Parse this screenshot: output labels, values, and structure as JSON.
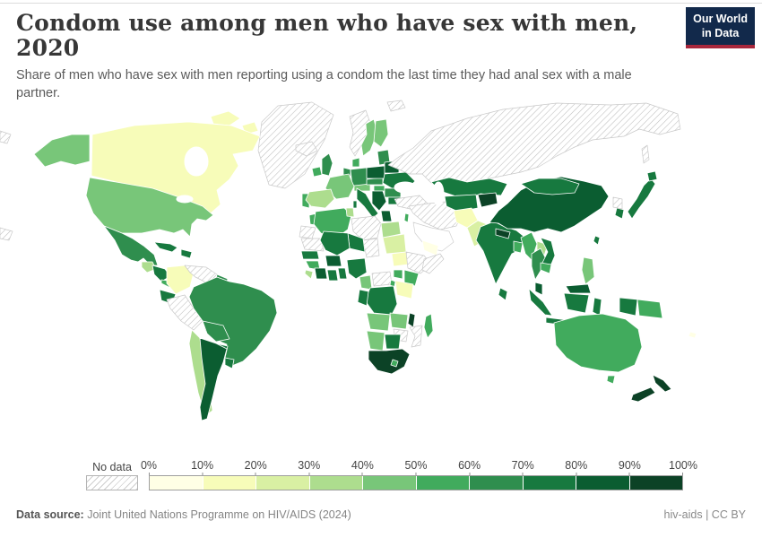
{
  "header": {
    "title": "Condom use among men who have sex with men, 2020",
    "subtitle": "Share of men who have sex with men reporting using a condom the last time they had anal sex with a male partner."
  },
  "logo": {
    "line1": "Our World",
    "line2": "in Data",
    "bg_color": "#12294b",
    "accent_color": "#a8273c"
  },
  "footer": {
    "source_label": "Data source:",
    "source_text": "Joint United Nations Programme on HIV/AIDS (2024)",
    "attribution": "hiv-aids | CC BY"
  },
  "chart_data": {
    "type": "choropleth_map",
    "title": "Condom use among men who have sex with men, 2020",
    "year": 2020,
    "unit": "%",
    "projection": "world",
    "legend": {
      "no_data_label": "No data",
      "tick_labels": [
        "0%",
        "10%",
        "20%",
        "30%",
        "40%",
        "50%",
        "60%",
        "70%",
        "80%",
        "90%",
        "100%"
      ],
      "bin_labels": [
        "0-10%",
        "10-20%",
        "20-30%",
        "30-40%",
        "40-50%",
        "50-60%",
        "60-70%",
        "70-80%",
        "80-90%",
        "90-100%"
      ],
      "bin_colors": [
        "#ffffe5",
        "#f7fcb9",
        "#d9f0a3",
        "#addd8e",
        "#78c679",
        "#41ab5d",
        "#2f8e4e",
        "#17793f",
        "#0b5d31",
        "#0c4226"
      ],
      "no_data_fill": "hatched",
      "position": "bottom"
    },
    "regions": [
      {
        "id": "greenland",
        "name": "Greenland",
        "value": "No data",
        "bin": "nodata"
      },
      {
        "id": "iceland",
        "name": "Iceland",
        "value": "No data",
        "bin": "nodata"
      },
      {
        "id": "canada",
        "name": "Canada",
        "value": "10-20%",
        "bin": 1
      },
      {
        "id": "usa",
        "name": "United States",
        "value": "40-50%",
        "bin": 4
      },
      {
        "id": "mexico",
        "name": "Mexico",
        "value": "60-70%",
        "bin": 6
      },
      {
        "id": "guatemala",
        "name": "Guatemala",
        "value": "30-40%",
        "bin": 3
      },
      {
        "id": "honduras-nicaragua",
        "name": "Honduras / Nicaragua",
        "value": "70-80%",
        "bin": 7
      },
      {
        "id": "costarica-panama",
        "name": "Costa Rica / Panama",
        "value": "50-60%",
        "bin": 5
      },
      {
        "id": "cuba",
        "name": "Cuba",
        "value": "70-80%",
        "bin": 7
      },
      {
        "id": "hispaniola",
        "name": "Dominican Republic / Haiti",
        "value": "70-80%",
        "bin": 7
      },
      {
        "id": "colombia",
        "name": "Colombia",
        "value": "10-20%",
        "bin": 1
      },
      {
        "id": "venezuela",
        "name": "Venezuela",
        "value": "No data",
        "bin": "nodata"
      },
      {
        "id": "guyanas",
        "name": "Guyana / Suriname",
        "value": "60-70%",
        "bin": 6
      },
      {
        "id": "ecuador",
        "name": "Ecuador",
        "value": "70-80%",
        "bin": 7
      },
      {
        "id": "peru",
        "name": "Peru",
        "value": "No data",
        "bin": "nodata"
      },
      {
        "id": "brazil",
        "name": "Brazil",
        "value": "60-70%",
        "bin": 6
      },
      {
        "id": "bolivia",
        "name": "Bolivia",
        "value": "60-70%",
        "bin": 6
      },
      {
        "id": "paraguay",
        "name": "Paraguay",
        "value": "70-80%",
        "bin": 7
      },
      {
        "id": "chile",
        "name": "Chile",
        "value": "30-40%",
        "bin": 3
      },
      {
        "id": "argentina",
        "name": "Argentina",
        "value": "80-90%",
        "bin": 8
      },
      {
        "id": "uruguay",
        "name": "Uruguay",
        "value": "70-80%",
        "bin": 7
      },
      {
        "id": "ireland",
        "name": "Ireland",
        "value": "50-60%",
        "bin": 5
      },
      {
        "id": "uk",
        "name": "United Kingdom",
        "value": "60-70%",
        "bin": 6
      },
      {
        "id": "portugal",
        "name": "Portugal",
        "value": "50-60%",
        "bin": 5
      },
      {
        "id": "spain",
        "name": "Spain",
        "value": "30-40%",
        "bin": 3
      },
      {
        "id": "france",
        "name": "France",
        "value": "40-50%",
        "bin": 4
      },
      {
        "id": "benelux",
        "name": "Belgium / Netherlands",
        "value": "60-70%",
        "bin": 6
      },
      {
        "id": "germany",
        "name": "Germany",
        "value": "60-70%",
        "bin": 6
      },
      {
        "id": "denmark",
        "name": "Denmark",
        "value": "50-60%",
        "bin": 5
      },
      {
        "id": "norway",
        "name": "Norway",
        "value": "No data",
        "bin": "nodata"
      },
      {
        "id": "sweden",
        "name": "Sweden",
        "value": "40-50%",
        "bin": 4
      },
      {
        "id": "finland",
        "name": "Finland",
        "value": "40-50%",
        "bin": 4
      },
      {
        "id": "baltics",
        "name": "Baltic states",
        "value": "60-70%",
        "bin": 6
      },
      {
        "id": "poland",
        "name": "Poland",
        "value": "80-90%",
        "bin": 8
      },
      {
        "id": "belarus",
        "name": "Belarus",
        "value": "80-90%",
        "bin": 8
      },
      {
        "id": "ukraine",
        "name": "Ukraine",
        "value": "70-80%",
        "bin": 7
      },
      {
        "id": "czech-slovakia",
        "name": "Czechia / Slovakia",
        "value": "60-70%",
        "bin": 6
      },
      {
        "id": "alpine",
        "name": "Switzerland / Austria",
        "value": "40-50%",
        "bin": 4
      },
      {
        "id": "hungary",
        "name": "Hungary",
        "value": "50-60%",
        "bin": 5
      },
      {
        "id": "romania",
        "name": "Romania",
        "value": "60-70%",
        "bin": 6
      },
      {
        "id": "balkans",
        "name": "Serbia / Western Balkans",
        "value": "80-90%",
        "bin": 8
      },
      {
        "id": "bulgaria",
        "name": "Bulgaria",
        "value": "70-80%",
        "bin": 7
      },
      {
        "id": "greece",
        "name": "Greece",
        "value": "80-90%",
        "bin": 8
      },
      {
        "id": "italy",
        "name": "Italy",
        "value": "70-80%",
        "bin": 7
      },
      {
        "id": "sardinia",
        "name": "Sardinia",
        "value": "70-80%",
        "bin": 7
      },
      {
        "id": "russia",
        "name": "Russia",
        "value": "No data",
        "bin": "nodata"
      },
      {
        "id": "turkey",
        "name": "Turkey",
        "value": "No data",
        "bin": "nodata"
      },
      {
        "id": "middle-east",
        "name": "Syria / Iraq / Iran",
        "value": "No data",
        "bin": "nodata"
      },
      {
        "id": "arabia",
        "name": "Saudi Arabia / Oman",
        "value": "No data",
        "bin": "blank"
      },
      {
        "id": "yemen",
        "name": "Yemen",
        "value": "0-10%",
        "bin": 0
      },
      {
        "id": "israel-lebanon",
        "name": "Israel / Lebanon",
        "value": "50-60%",
        "bin": 5
      },
      {
        "id": "kazakhstan",
        "name": "Kazakhstan",
        "value": "70-80%",
        "bin": 7
      },
      {
        "id": "uzbek-turkmen",
        "name": "Uzbekistan / Turkmenistan",
        "value": "70-80%",
        "bin": 7
      },
      {
        "id": "kyrgyz-tajik",
        "name": "Kyrgyzstan / Tajikistan",
        "value": "90-100%",
        "bin": 9
      },
      {
        "id": "afghanistan",
        "name": "Afghanistan",
        "value": "10-20%",
        "bin": 1
      },
      {
        "id": "pakistan",
        "name": "Pakistan",
        "value": "20-30%",
        "bin": 2
      },
      {
        "id": "india",
        "name": "India",
        "value": "70-80%",
        "bin": 7
      },
      {
        "id": "nepal",
        "name": "Nepal",
        "value": "90-100%",
        "bin": 9
      },
      {
        "id": "bangladesh",
        "name": "Bangladesh",
        "value": "50-60%",
        "bin": 5
      },
      {
        "id": "sri-lanka",
        "name": "Sri Lanka",
        "value": "70-80%",
        "bin": 7
      },
      {
        "id": "china",
        "name": "China",
        "value": "80-90%",
        "bin": 8
      },
      {
        "id": "mongolia",
        "name": "Mongolia",
        "value": "70-80%",
        "bin": 7
      },
      {
        "id": "myanmar",
        "name": "Myanmar",
        "value": "50-60%",
        "bin": 5
      },
      {
        "id": "laos",
        "name": "Laos",
        "value": "30-40%",
        "bin": 3
      },
      {
        "id": "thailand",
        "name": "Thailand",
        "value": "60-70%",
        "bin": 6
      },
      {
        "id": "vietnam",
        "name": "Vietnam",
        "value": "70-80%",
        "bin": 7
      },
      {
        "id": "cambodia",
        "name": "Cambodia",
        "value": "50-60%",
        "bin": 5
      },
      {
        "id": "malaysia",
        "name": "Malaysia",
        "value": "80-90%",
        "bin": 8
      },
      {
        "id": "indonesia",
        "name": "Indonesia",
        "value": "70-80%",
        "bin": 7
      },
      {
        "id": "png",
        "name": "Papua New Guinea",
        "value": "50-60%",
        "bin": 5
      },
      {
        "id": "philippines",
        "name": "Philippines",
        "value": "40-50%",
        "bin": 4
      },
      {
        "id": "taiwan",
        "name": "Taiwan",
        "value": "70-80%",
        "bin": 7
      },
      {
        "id": "japan",
        "name": "Japan",
        "value": "70-80%",
        "bin": 7
      },
      {
        "id": "south-korea",
        "name": "South Korea",
        "value": "70-80%",
        "bin": 7
      },
      {
        "id": "north-korea",
        "name": "North Korea",
        "value": "No data",
        "bin": "nodata"
      },
      {
        "id": "morocco",
        "name": "Morocco",
        "value": "50-60%",
        "bin": 5
      },
      {
        "id": "western-sahara",
        "name": "Western Sahara",
        "value": "No data",
        "bin": "nodata"
      },
      {
        "id": "mauritania",
        "name": "Mauritania",
        "value": "No data",
        "bin": "nodata"
      },
      {
        "id": "algeria",
        "name": "Algeria",
        "value": "50-60%",
        "bin": 5
      },
      {
        "id": "tunisia",
        "name": "Tunisia",
        "value": "30-40%",
        "bin": 3
      },
      {
        "id": "libya",
        "name": "Libya",
        "value": "No data",
        "bin": "nodata"
      },
      {
        "id": "egypt",
        "name": "Egypt",
        "value": "30-40%",
        "bin": 3
      },
      {
        "id": "sudan",
        "name": "Sudan",
        "value": "20-30%",
        "bin": 2
      },
      {
        "id": "chad",
        "name": "Chad",
        "value": "No data",
        "bin": "nodata"
      },
      {
        "id": "niger",
        "name": "Niger",
        "value": "70-80%",
        "bin": 7
      },
      {
        "id": "mali",
        "name": "Mali",
        "value": "70-80%",
        "bin": 7
      },
      {
        "id": "senegal",
        "name": "Senegal",
        "value": "70-80%",
        "bin": 7
      },
      {
        "id": "guinea",
        "name": "Guinea",
        "value": "50-60%",
        "bin": 5
      },
      {
        "id": "sierra-leone",
        "name": "Sierra Leone / Liberia",
        "value": "30-40%",
        "bin": 3
      },
      {
        "id": "ivory-coast",
        "name": "Cote d'Ivoire",
        "value": "80-90%",
        "bin": 8
      },
      {
        "id": "ghana",
        "name": "Ghana",
        "value": "70-80%",
        "bin": 7
      },
      {
        "id": "burkina-faso",
        "name": "Burkina Faso",
        "value": "80-90%",
        "bin": 8
      },
      {
        "id": "togo-benin",
        "name": "Togo / Benin",
        "value": "70-80%",
        "bin": 7
      },
      {
        "id": "nigeria",
        "name": "Nigeria",
        "value": "70-80%",
        "bin": 7
      },
      {
        "id": "cameroon",
        "name": "Cameroon",
        "value": "40-50%",
        "bin": 4
      },
      {
        "id": "car",
        "name": "Central African Republic",
        "value": "No data",
        "bin": "nodata"
      },
      {
        "id": "south-sudan",
        "name": "South Sudan",
        "value": "10-20%",
        "bin": 1
      },
      {
        "id": "ethiopia",
        "name": "Ethiopia",
        "value": "No data",
        "bin": "nodata"
      },
      {
        "id": "somalia",
        "name": "Somalia",
        "value": "No data",
        "bin": "nodata"
      },
      {
        "id": "uganda",
        "name": "Uganda",
        "value": "50-60%",
        "bin": 5
      },
      {
        "id": "kenya",
        "name": "Kenya",
        "value": "50-60%",
        "bin": 5
      },
      {
        "id": "tanzania",
        "name": "Tanzania",
        "value": "10-20%",
        "bin": 1
      },
      {
        "id": "rwanda-burundi",
        "name": "Rwanda / Burundi",
        "value": "50-60%",
        "bin": 5
      },
      {
        "id": "drc",
        "name": "Democratic Republic of Congo",
        "value": "70-80%",
        "bin": 7
      },
      {
        "id": "congo-gabon",
        "name": "Congo / Gabon",
        "value": "70-80%",
        "bin": 7
      },
      {
        "id": "angola",
        "name": "Angola",
        "value": "40-50%",
        "bin": 4
      },
      {
        "id": "zambia",
        "name": "Zambia",
        "value": "40-50%",
        "bin": 4
      },
      {
        "id": "malawi",
        "name": "Malawi",
        "value": "90-100%",
        "bin": 9
      },
      {
        "id": "mozambique",
        "name": "Mozambique",
        "value": "No data",
        "bin": "nodata"
      },
      {
        "id": "zimbabwe",
        "name": "Zimbabwe",
        "value": "No data",
        "bin": "nodata"
      },
      {
        "id": "namibia",
        "name": "Namibia",
        "value": "40-50%",
        "bin": 4
      },
      {
        "id": "botswana",
        "name": "Botswana",
        "value": "70-80%",
        "bin": 7
      },
      {
        "id": "south-africa",
        "name": "South Africa",
        "value": "90-100%",
        "bin": 9
      },
      {
        "id": "lesotho",
        "name": "Lesotho",
        "value": "50-60%",
        "bin": 5
      },
      {
        "id": "madagascar",
        "name": "Madagascar",
        "value": "50-60%",
        "bin": 5
      },
      {
        "id": "australia",
        "name": "Australia",
        "value": "50-60%",
        "bin": 5
      },
      {
        "id": "new-zealand",
        "name": "New Zealand",
        "value": "90-100%",
        "bin": 9
      },
      {
        "id": "fiji",
        "name": "Fiji",
        "value": "0-10%",
        "bin": 0
      }
    ]
  }
}
